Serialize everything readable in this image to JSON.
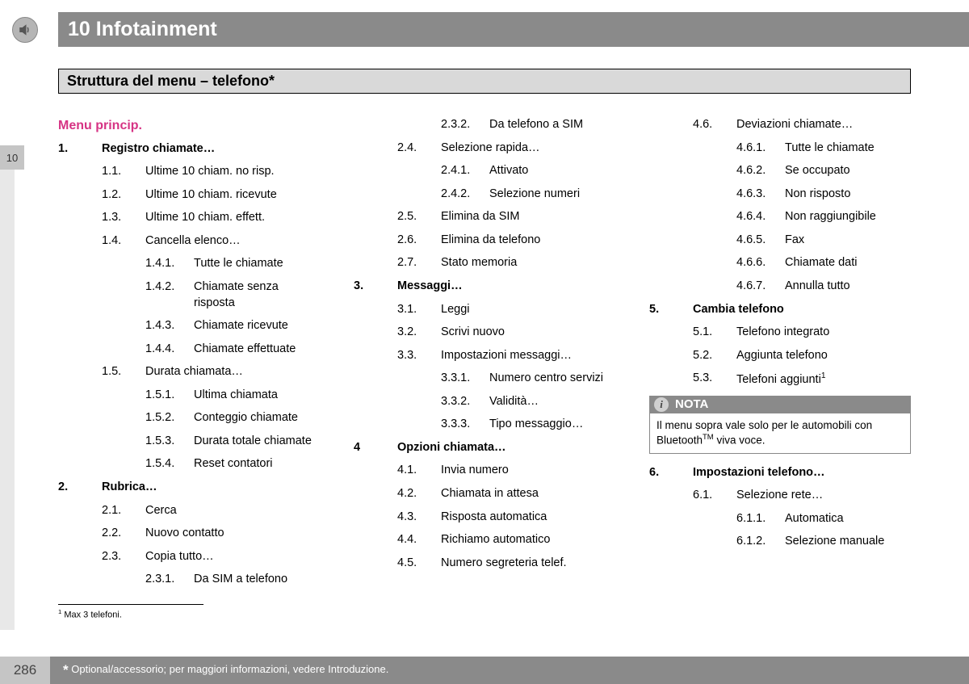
{
  "header": {
    "chapter": "10 Infotainment"
  },
  "subheader": "Struttura del menu – telefono*",
  "sideTab": "10",
  "menuTitle": "Menu princip.",
  "col1": [
    {
      "lvl": 0,
      "num": "1.",
      "txt": "Registro chiamate…"
    },
    {
      "lvl": 1,
      "num": "1.1.",
      "txt": "Ultime 10 chiam. no risp."
    },
    {
      "lvl": 1,
      "num": "1.2.",
      "txt": "Ultime 10 chiam. ricevute"
    },
    {
      "lvl": 1,
      "num": "1.3.",
      "txt": "Ultime 10 chiam. effett."
    },
    {
      "lvl": 1,
      "num": "1.4.",
      "txt": "Cancella elenco…"
    },
    {
      "lvl": 2,
      "num": "1.4.1.",
      "txt": "Tutte le chiamate"
    },
    {
      "lvl": 2,
      "num": "1.4.2.",
      "txt": "Chiamate senza risposta"
    },
    {
      "lvl": 2,
      "num": "1.4.3.",
      "txt": "Chiamate ricevute"
    },
    {
      "lvl": 2,
      "num": "1.4.4.",
      "txt": "Chiamate effettuate"
    },
    {
      "lvl": 1,
      "num": "1.5.",
      "txt": "Durata chiamata…"
    },
    {
      "lvl": 2,
      "num": "1.5.1.",
      "txt": "Ultima chiamata"
    },
    {
      "lvl": 2,
      "num": "1.5.2.",
      "txt": "Conteggio chiamate"
    },
    {
      "lvl": 2,
      "num": "1.5.3.",
      "txt": "Durata totale chiamate"
    },
    {
      "lvl": 2,
      "num": "1.5.4.",
      "txt": "Reset contatori"
    },
    {
      "lvl": 0,
      "num": "2.",
      "txt": "Rubrica…"
    },
    {
      "lvl": 1,
      "num": "2.1.",
      "txt": "Cerca"
    },
    {
      "lvl": 1,
      "num": "2.2.",
      "txt": "Nuovo contatto"
    },
    {
      "lvl": 1,
      "num": "2.3.",
      "txt": "Copia tutto…"
    },
    {
      "lvl": 2,
      "num": "2.3.1.",
      "txt": "Da SIM a telefono"
    }
  ],
  "col2": [
    {
      "lvl": 2,
      "num": "2.3.2.",
      "txt": "Da telefono a SIM"
    },
    {
      "lvl": 1,
      "num": "2.4.",
      "txt": "Selezione rapida…"
    },
    {
      "lvl": 2,
      "num": "2.4.1.",
      "txt": "Attivato"
    },
    {
      "lvl": 2,
      "num": "2.4.2.",
      "txt": "Selezione numeri"
    },
    {
      "lvl": 1,
      "num": "2.5.",
      "txt": "Elimina da SIM"
    },
    {
      "lvl": 1,
      "num": "2.6.",
      "txt": "Elimina da telefono"
    },
    {
      "lvl": 1,
      "num": "2.7.",
      "txt": "Stato memoria"
    },
    {
      "lvl": 0,
      "num": "3.",
      "txt": "Messaggi…"
    },
    {
      "lvl": 1,
      "num": "3.1.",
      "txt": "Leggi"
    },
    {
      "lvl": 1,
      "num": "3.2.",
      "txt": "Scrivi nuovo"
    },
    {
      "lvl": 1,
      "num": "3.3.",
      "txt": "Impostazioni messaggi…"
    },
    {
      "lvl": 2,
      "num": "3.3.1.",
      "txt": "Numero centro servizi"
    },
    {
      "lvl": 2,
      "num": "3.3.2.",
      "txt": "Validità…"
    },
    {
      "lvl": 2,
      "num": "3.3.3.",
      "txt": "Tipo messaggio…"
    },
    {
      "lvl": 0,
      "num": "4",
      "txt": "Opzioni chiamata…"
    },
    {
      "lvl": 1,
      "num": "4.1.",
      "txt": "Invia numero"
    },
    {
      "lvl": 1,
      "num": "4.2.",
      "txt": "Chiamata in attesa"
    },
    {
      "lvl": 1,
      "num": "4.3.",
      "txt": "Risposta automatica"
    },
    {
      "lvl": 1,
      "num": "4.4.",
      "txt": "Richiamo automatico"
    },
    {
      "lvl": 1,
      "num": "4.5.",
      "txt": "Numero segreteria telef."
    }
  ],
  "col3a": [
    {
      "lvl": 1,
      "num": "4.6.",
      "txt": "Deviazioni chiamate…"
    },
    {
      "lvl": 2,
      "num": "4.6.1.",
      "txt": "Tutte le chiamate"
    },
    {
      "lvl": 2,
      "num": "4.6.2.",
      "txt": "Se occupato"
    },
    {
      "lvl": 2,
      "num": "4.6.3.",
      "txt": "Non risposto"
    },
    {
      "lvl": 2,
      "num": "4.6.4.",
      "txt": "Non raggiungibile"
    },
    {
      "lvl": 2,
      "num": "4.6.5.",
      "txt": "Fax"
    },
    {
      "lvl": 2,
      "num": "4.6.6.",
      "txt": "Chiamate dati"
    },
    {
      "lvl": 2,
      "num": "4.6.7.",
      "txt": "Annulla tutto"
    },
    {
      "lvl": 0,
      "num": "5.",
      "txt": "Cambia telefono"
    },
    {
      "lvl": 1,
      "num": "5.1.",
      "txt": "Telefono integrato"
    },
    {
      "lvl": 1,
      "num": "5.2.",
      "txt": "Aggiunta telefono"
    },
    {
      "lvl": 1,
      "num": "5.3.",
      "txt": "Telefoni aggiunti",
      "sup": "1"
    }
  ],
  "nota": {
    "label": "NOTA",
    "body_pre": "Il menu sopra vale solo per le automobili con Bluetooth",
    "body_sup": "TM",
    "body_post": " viva voce."
  },
  "col3b": [
    {
      "lvl": 0,
      "num": "6.",
      "txt": "Impostazioni telefono…"
    },
    {
      "lvl": 1,
      "num": "6.1.",
      "txt": "Selezione rete…"
    },
    {
      "lvl": 2,
      "num": "6.1.1.",
      "txt": "Automatica"
    },
    {
      "lvl": 2,
      "num": "6.1.2.",
      "txt": "Selezione manuale"
    }
  ],
  "footnote": {
    "marker": "1",
    "text": "Max 3 telefoni."
  },
  "footer": {
    "page": "286",
    "text": "Optional/accessorio; per maggiori informazioni, vedere Introduzione."
  }
}
